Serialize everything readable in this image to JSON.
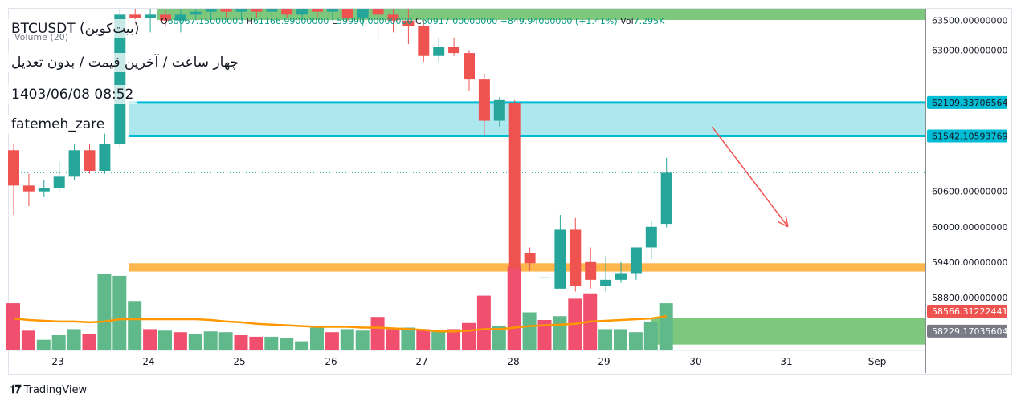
{
  "header": {
    "symbol_title": "BTCUSDT (بیت‌کوین)",
    "subtitle": "چهار ساعت / آخرین قیمت / بدون تعدیل",
    "datetime": "1403/06/08 08:52",
    "author": "fatemeh_zare"
  },
  "ohlc": {
    "o_key": "O",
    "o_val": "60067.15000000",
    "h_key": "H",
    "h_val": "61166.99000000",
    "l_key": "L",
    "l_val": "59990.00000000",
    "c_key": "C",
    "c_val": "60917.00000000",
    "change": "+849.94000000 (+1.41%)",
    "vol_key": "Vol",
    "vol_val": "7.295K"
  },
  "volume_label": "Volume (20)",
  "branding": {
    "name": "TradingView"
  },
  "colors": {
    "up": "#26a69a",
    "down": "#ef5350",
    "vol_up": "#5fb98a",
    "vol_down": "#f0506e",
    "zone": "#aee8ef",
    "zone_border": "#00bcd4",
    "support": "#ffb74d",
    "ma": "#ff9800",
    "arrow": "#ef5350",
    "green_band": "#7ec87e"
  },
  "chart_data": {
    "type": "candlestick",
    "y_range": [
      57900,
      63700
    ],
    "x_labels": [
      "23",
      "24",
      "25",
      "26",
      "27",
      "28",
      "29",
      "30",
      "31",
      "Sep"
    ],
    "y_ticks": [
      "63500.00000000",
      "63000.00000000",
      "60600.00000000",
      "60000.00000000",
      "59400.00000000",
      "58800.00000000"
    ],
    "price_tags": [
      {
        "label": "62109.33706564",
        "value": 62109.34,
        "bg": "#00bcd4",
        "fg": "#131722"
      },
      {
        "label": "61542.10593769",
        "value": 61542.11,
        "bg": "#00bcd4",
        "fg": "#131722"
      },
      {
        "label": "58566.31222441",
        "value": 58566.31,
        "bg": "#ef5350",
        "fg": "#ffffff"
      },
      {
        "label": "58229.17035604",
        "value": 58229.17,
        "bg": "#787b86",
        "fg": "#ffffff"
      }
    ],
    "resistance_zone": {
      "low": 61542.11,
      "high": 62109.34,
      "from_index": 8
    },
    "support_zone": {
      "low": 59240,
      "high": 59380,
      "from_index": 8
    },
    "top_band": {
      "low": 63510,
      "high": 63700
    },
    "bottom_band": {
      "low": 58000,
      "high": 58450,
      "from_index": 42
    },
    "current_price_line": 60917,
    "candles": [
      {
        "o": 61300,
        "h": 61400,
        "l": 60200,
        "c": 60700
      },
      {
        "o": 60700,
        "h": 60900,
        "l": 60350,
        "c": 60600
      },
      {
        "o": 60600,
        "h": 60800,
        "l": 60500,
        "c": 60650
      },
      {
        "o": 60650,
        "h": 61100,
        "l": 60600,
        "c": 60850
      },
      {
        "o": 60850,
        "h": 61400,
        "l": 60800,
        "c": 61300
      },
      {
        "o": 61300,
        "h": 61400,
        "l": 60900,
        "c": 60950
      },
      {
        "o": 60950,
        "h": 61600,
        "l": 60900,
        "c": 61400
      },
      {
        "o": 61400,
        "h": 64000,
        "l": 61350,
        "c": 63600
      },
      {
        "o": 63600,
        "h": 63800,
        "l": 63400,
        "c": 63550
      },
      {
        "o": 63550,
        "h": 63700,
        "l": 63300,
        "c": 63600
      },
      {
        "o": 63600,
        "h": 63750,
        "l": 63400,
        "c": 63500
      },
      {
        "o": 63500,
        "h": 63700,
        "l": 63300,
        "c": 63600
      },
      {
        "o": 63600,
        "h": 63800,
        "l": 63500,
        "c": 63650
      },
      {
        "o": 63650,
        "h": 63800,
        "l": 63500,
        "c": 63700
      },
      {
        "o": 63700,
        "h": 63800,
        "l": 63550,
        "c": 63650
      },
      {
        "o": 63650,
        "h": 63800,
        "l": 63500,
        "c": 63700
      },
      {
        "o": 63700,
        "h": 63800,
        "l": 63550,
        "c": 63650
      },
      {
        "o": 63650,
        "h": 63800,
        "l": 63550,
        "c": 63700
      },
      {
        "o": 63700,
        "h": 63800,
        "l": 63550,
        "c": 63600
      },
      {
        "o": 63600,
        "h": 63800,
        "l": 63500,
        "c": 63700
      },
      {
        "o": 63700,
        "h": 63800,
        "l": 63550,
        "c": 63650
      },
      {
        "o": 63650,
        "h": 63800,
        "l": 63500,
        "c": 63700
      },
      {
        "o": 63700,
        "h": 63850,
        "l": 63500,
        "c": 63550
      },
      {
        "o": 63550,
        "h": 63800,
        "l": 63400,
        "c": 63700
      },
      {
        "o": 63700,
        "h": 63900,
        "l": 63200,
        "c": 63600
      },
      {
        "o": 63600,
        "h": 63800,
        "l": 63300,
        "c": 63500
      },
      {
        "o": 63500,
        "h": 63700,
        "l": 63100,
        "c": 63400
      },
      {
        "o": 63400,
        "h": 63500,
        "l": 62800,
        "c": 62900
      },
      {
        "o": 62900,
        "h": 63200,
        "l": 62800,
        "c": 63050
      },
      {
        "o": 63050,
        "h": 63200,
        "l": 62900,
        "c": 62950
      },
      {
        "o": 62950,
        "h": 63000,
        "l": 62300,
        "c": 62500
      },
      {
        "o": 62500,
        "h": 62600,
        "l": 61550,
        "c": 61800
      },
      {
        "o": 61800,
        "h": 62200,
        "l": 61700,
        "c": 62150
      },
      {
        "o": 62100,
        "h": 62150,
        "l": 59280,
        "c": 59300
      },
      {
        "o": 59550,
        "h": 59650,
        "l": 59250,
        "c": 59380
      },
      {
        "o": 59150,
        "h": 59600,
        "l": 58700,
        "c": 59150
      },
      {
        "o": 58950,
        "h": 60200,
        "l": 58950,
        "c": 59950
      },
      {
        "o": 59950,
        "h": 60150,
        "l": 58900,
        "c": 59000
      },
      {
        "o": 59400,
        "h": 59650,
        "l": 58950,
        "c": 59100
      },
      {
        "o": 59000,
        "h": 59500,
        "l": 58900,
        "c": 59100
      },
      {
        "o": 59100,
        "h": 59400,
        "l": 59050,
        "c": 59200
      },
      {
        "o": 59200,
        "h": 59650,
        "l": 59100,
        "c": 59650
      },
      {
        "o": 59650,
        "h": 60100,
        "l": 59450,
        "c": 60000
      },
      {
        "o": 60050,
        "h": 61170,
        "l": 59990,
        "c": 60917
      }
    ],
    "volumes": [
      {
        "v": 0.62,
        "up": false
      },
      {
        "v": 0.26,
        "up": false
      },
      {
        "v": 0.14,
        "up": true
      },
      {
        "v": 0.2,
        "up": true
      },
      {
        "v": 0.28,
        "up": true
      },
      {
        "v": 0.22,
        "up": false
      },
      {
        "v": 1.0,
        "up": true
      },
      {
        "v": 0.98,
        "up": true
      },
      {
        "v": 0.65,
        "up": true
      },
      {
        "v": 0.28,
        "up": false
      },
      {
        "v": 0.26,
        "up": true
      },
      {
        "v": 0.24,
        "up": false
      },
      {
        "v": 0.22,
        "up": true
      },
      {
        "v": 0.25,
        "up": true
      },
      {
        "v": 0.24,
        "up": true
      },
      {
        "v": 0.2,
        "up": false
      },
      {
        "v": 0.18,
        "up": false
      },
      {
        "v": 0.18,
        "up": true
      },
      {
        "v": 0.16,
        "up": true
      },
      {
        "v": 0.12,
        "up": true
      },
      {
        "v": 0.3,
        "up": true
      },
      {
        "v": 0.24,
        "up": false
      },
      {
        "v": 0.28,
        "up": true
      },
      {
        "v": 0.26,
        "up": true
      },
      {
        "v": 0.44,
        "up": false
      },
      {
        "v": 0.28,
        "up": false
      },
      {
        "v": 0.3,
        "up": true
      },
      {
        "v": 0.28,
        "up": false
      },
      {
        "v": 0.25,
        "up": true
      },
      {
        "v": 0.28,
        "up": false
      },
      {
        "v": 0.36,
        "up": false
      },
      {
        "v": 0.72,
        "up": false
      },
      {
        "v": 0.32,
        "up": true
      },
      {
        "v": 1.1,
        "up": false
      },
      {
        "v": 0.5,
        "up": true
      },
      {
        "v": 0.4,
        "up": false
      },
      {
        "v": 0.45,
        "up": true
      },
      {
        "v": 0.68,
        "up": false
      },
      {
        "v": 0.75,
        "up": false
      },
      {
        "v": 0.28,
        "up": true
      },
      {
        "v": 0.28,
        "up": true
      },
      {
        "v": 0.24,
        "up": true
      },
      {
        "v": 0.38,
        "up": true
      },
      {
        "v": 0.62,
        "up": true
      }
    ],
    "volume_ma": [
      0.42,
      0.4,
      0.39,
      0.38,
      0.38,
      0.37,
      0.38,
      0.41,
      0.41,
      0.41,
      0.41,
      0.41,
      0.41,
      0.4,
      0.38,
      0.37,
      0.35,
      0.34,
      0.33,
      0.32,
      0.31,
      0.31,
      0.31,
      0.3,
      0.3,
      0.29,
      0.28,
      0.27,
      0.25,
      0.25,
      0.26,
      0.28,
      0.28,
      0.3,
      0.32,
      0.33,
      0.34,
      0.35,
      0.38,
      0.39,
      0.4,
      0.41,
      0.42,
      0.45
    ],
    "arrow": {
      "from_index": 46,
      "from_value": 61700,
      "to_index": 51,
      "to_value": 60000
    }
  }
}
